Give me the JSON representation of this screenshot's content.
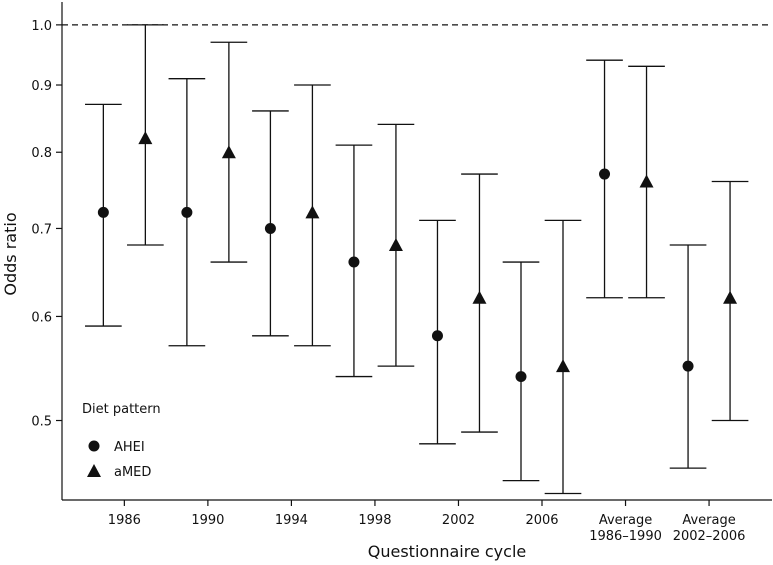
{
  "chart_data": {
    "type": "scatter",
    "subtype": "point-estimates-with-error-bars",
    "xlabel": "Questionnaire cycle",
    "ylabel": "Odds ratio",
    "y_scale": "log",
    "ylim": [
      0.435,
      1.03
    ],
    "y_ticks": [
      0.5,
      0.6,
      0.7,
      0.8,
      0.9,
      1.0
    ],
    "y_tick_labels": [
      "0.5",
      "0.6",
      "0.7",
      "0.8",
      "0.9",
      "1.0"
    ],
    "reference_line": {
      "y": 1.0,
      "style": "dashed"
    },
    "categories": [
      [
        "1986"
      ],
      [
        "1990"
      ],
      [
        "1994"
      ],
      [
        "1998"
      ],
      [
        "2002"
      ],
      [
        "2006"
      ],
      [
        "Average",
        "1986–1990"
      ],
      [
        "Average",
        "2002–2006"
      ]
    ],
    "legend": {
      "title": "Diet pattern",
      "position": "bottom-left"
    },
    "series": [
      {
        "name": "AHEI",
        "marker": "circle",
        "points": [
          {
            "y": 0.72,
            "lo": 0.59,
            "hi": 0.87
          },
          {
            "y": 0.72,
            "lo": 0.57,
            "hi": 0.91
          },
          {
            "y": 0.7,
            "lo": 0.58,
            "hi": 0.86
          },
          {
            "y": 0.66,
            "lo": 0.54,
            "hi": 0.81
          },
          {
            "y": 0.58,
            "lo": 0.48,
            "hi": 0.71
          },
          {
            "y": 0.54,
            "lo": 0.45,
            "hi": 0.66
          },
          {
            "y": 0.77,
            "lo": 0.62,
            "hi": 0.94
          },
          {
            "y": 0.55,
            "lo": 0.46,
            "hi": 0.68
          }
        ]
      },
      {
        "name": "aMED",
        "marker": "triangle",
        "points": [
          {
            "y": 0.82,
            "lo": 0.68,
            "hi": 1.0
          },
          {
            "y": 0.8,
            "lo": 0.66,
            "hi": 0.97
          },
          {
            "y": 0.72,
            "lo": 0.57,
            "hi": 0.9
          },
          {
            "y": 0.68,
            "lo": 0.55,
            "hi": 0.84
          },
          {
            "y": 0.62,
            "lo": 0.49,
            "hi": 0.77
          },
          {
            "y": 0.55,
            "lo": 0.44,
            "hi": 0.71
          },
          {
            "y": 0.76,
            "lo": 0.62,
            "hi": 0.93
          },
          {
            "y": 0.62,
            "lo": 0.5,
            "hi": 0.76
          }
        ]
      }
    ]
  }
}
